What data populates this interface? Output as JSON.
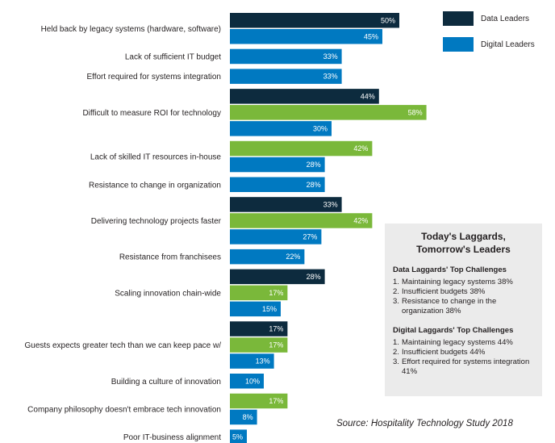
{
  "chart_data": {
    "type": "bar",
    "orientation": "horizontal",
    "title": "",
    "xlabel": "",
    "ylabel": "",
    "colors": {
      "data_leaders": "#0d2b3e",
      "digital_leaders": "#0079c1",
      "laggards": "#7ab83a"
    },
    "legend": [
      {
        "name": "Data Leaders",
        "color": "#0d2b3e"
      },
      {
        "name": "Digital Leaders",
        "color": "#0079c1"
      }
    ],
    "categories": [
      {
        "label": "Held back by legacy systems (hardware, software)",
        "bars": [
          {
            "color": "#0d2b3e",
            "value": 50,
            "text": "50%"
          },
          {
            "color": "#0079c1",
            "value": 45,
            "text": "45%"
          }
        ]
      },
      {
        "label": "Lack of sufficient IT budget",
        "bars": [
          {
            "color": "#0079c1",
            "value": 33,
            "text": "33%"
          }
        ]
      },
      {
        "label": "Effort required for systems integration",
        "bars": [
          {
            "color": "#0079c1",
            "value": 33,
            "text": "33%"
          }
        ]
      },
      {
        "label": "Difficult to measure ROI for technology",
        "bars": [
          {
            "color": "#0d2b3e",
            "value": 44,
            "text": "44%"
          },
          {
            "color": "#7ab83a",
            "value": 58,
            "text": "58%"
          },
          {
            "color": "#0079c1",
            "value": 30,
            "text": "30%"
          }
        ]
      },
      {
        "label": "Lack of skilled IT resources in-house",
        "bars": [
          {
            "color": "#7ab83a",
            "value": 42,
            "text": "42%"
          },
          {
            "color": "#0079c1",
            "value": 28,
            "text": "28%"
          }
        ]
      },
      {
        "label": "Resistance to change in organization",
        "bars": [
          {
            "color": "#0079c1",
            "value": 28,
            "text": "28%"
          }
        ]
      },
      {
        "label": "Delivering technology projects faster",
        "bars": [
          {
            "color": "#0d2b3e",
            "value": 33,
            "text": "33%"
          },
          {
            "color": "#7ab83a",
            "value": 42,
            "text": "42%"
          },
          {
            "color": "#0079c1",
            "value": 27,
            "text": "27%"
          }
        ]
      },
      {
        "label": "Resistance from franchisees",
        "bars": [
          {
            "color": "#0079c1",
            "value": 22,
            "text": "22%"
          }
        ]
      },
      {
        "label": "Scaling innovation chain-wide",
        "bars": [
          {
            "color": "#0d2b3e",
            "value": 28,
            "text": "28%"
          },
          {
            "color": "#7ab83a",
            "value": 17,
            "text": "17%"
          },
          {
            "color": "#0079c1",
            "value": 15,
            "text": "15%"
          }
        ]
      },
      {
        "label": "Guests expects greater tech than we can keep pace w/",
        "bars": [
          {
            "color": "#0d2b3e",
            "value": 17,
            "text": "17%"
          },
          {
            "color": "#7ab83a",
            "value": 17,
            "text": "17%"
          },
          {
            "color": "#0079c1",
            "value": 13,
            "text": "13%"
          }
        ]
      },
      {
        "label": "Building a culture of innovation",
        "bars": [
          {
            "color": "#0079c1",
            "value": 10,
            "text": "10%"
          }
        ]
      },
      {
        "label": "Company philosophy doesn't embrace tech innovation",
        "bars": [
          {
            "color": "#7ab83a",
            "value": 17,
            "text": "17%"
          },
          {
            "color": "#0079c1",
            "value": 8,
            "text": "8%"
          }
        ]
      },
      {
        "label": "Poor IT-business alignment",
        "bars": [
          {
            "color": "#0079c1",
            "value": 5,
            "text": "5%"
          }
        ]
      }
    ]
  },
  "panel": {
    "title_line1": "Today's Laggards,",
    "title_line2": "Tomorrow's Leaders",
    "data_heading": "Data Laggards' Top Challenges",
    "data_items": [
      {
        "num": "1.",
        "text": "Maintaining legacy systems 38%"
      },
      {
        "num": "2.",
        "text": "Insufficient budgets 38%"
      },
      {
        "num": "3.",
        "text": "Resistance to change in the organization 38%"
      }
    ],
    "digital_heading": "Digital Laggards' Top Challenges",
    "digital_items": [
      {
        "num": "1.",
        "text": "Maintaining legacy systems 44%"
      },
      {
        "num": "2.",
        "text": "Insufficient budgets 44%"
      },
      {
        "num": "3.",
        "text": "Effort required for systems integration 41%"
      }
    ]
  },
  "source": "Source: Hospitality Technology Study 2018"
}
